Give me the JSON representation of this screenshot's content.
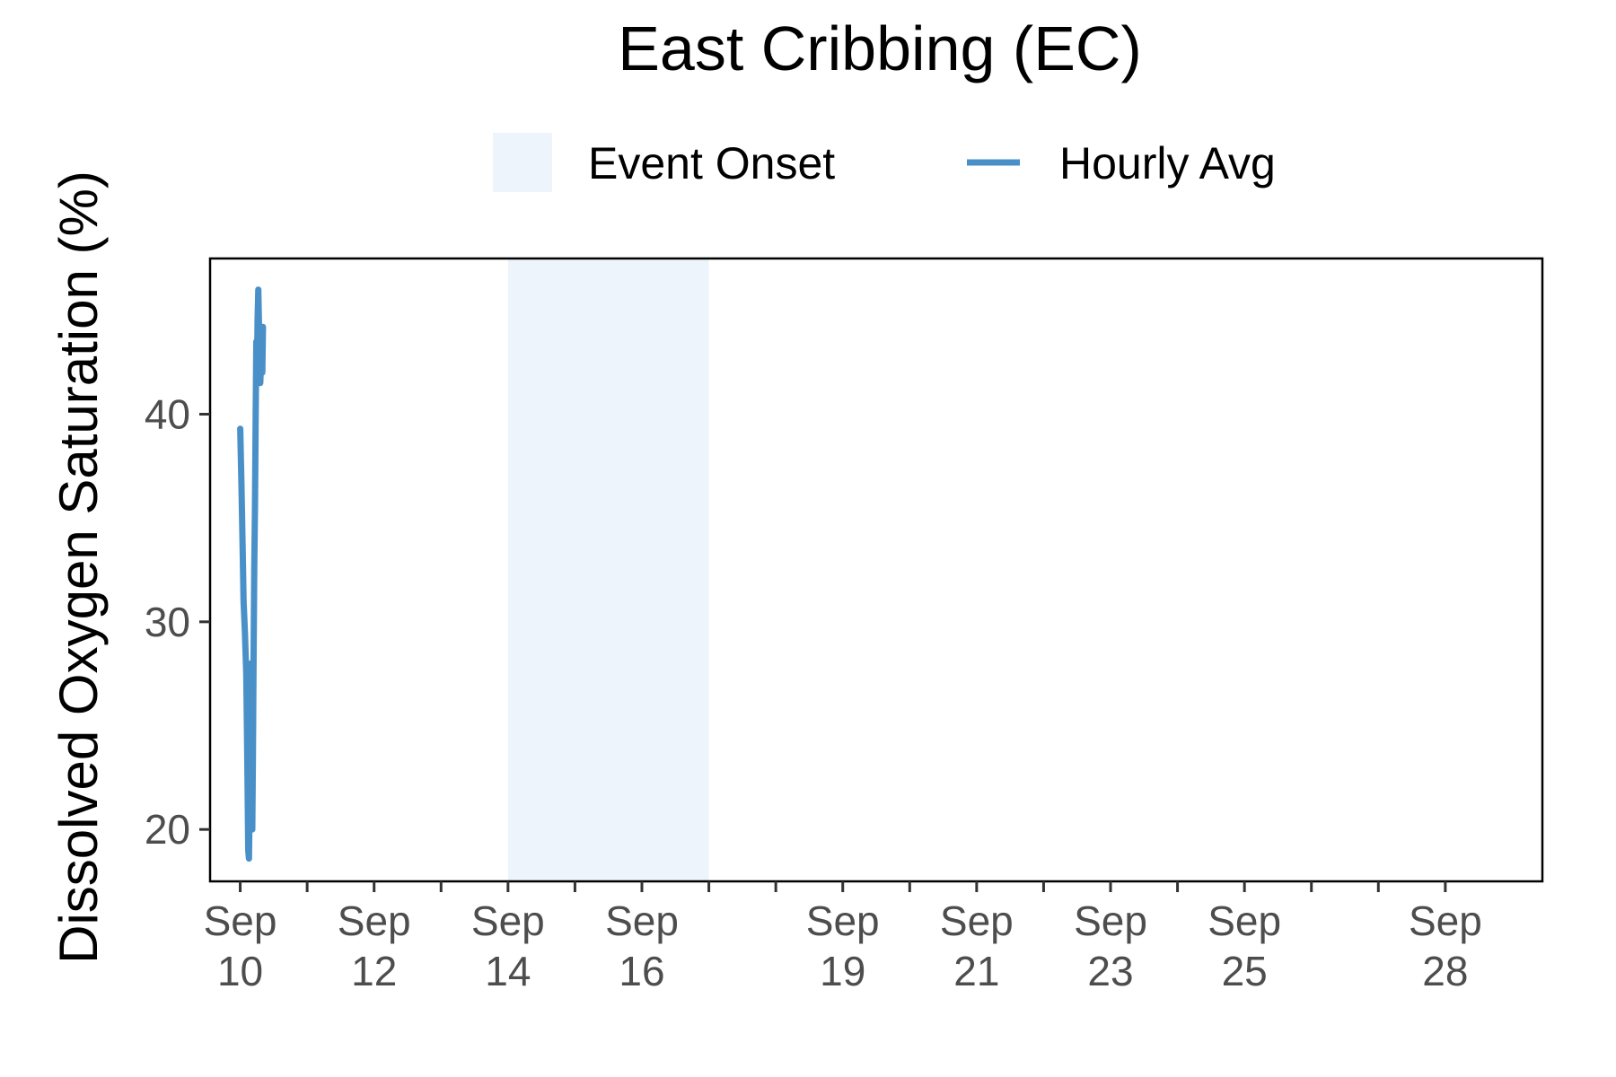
{
  "chart_data": {
    "type": "line",
    "title": "East Cribbing (EC)",
    "xlabel": "",
    "ylabel": "Dissolved Oxygen Saturation (%)",
    "x_range_days": [
      9.55,
      29.45
    ],
    "ylim": [
      17.5,
      47.5
    ],
    "y_ticks": [
      20,
      30,
      40
    ],
    "x_ticks": [
      {
        "day": 10,
        "label": [
          "Sep",
          "10"
        ]
      },
      {
        "day": 12,
        "label": [
          "Sep",
          "12"
        ]
      },
      {
        "day": 14,
        "label": [
          "Sep",
          "14"
        ]
      },
      {
        "day": 16,
        "label": [
          "Sep",
          "16"
        ]
      },
      {
        "day": 19,
        "label": [
          "Sep",
          "19"
        ]
      },
      {
        "day": 21,
        "label": [
          "Sep",
          "21"
        ]
      },
      {
        "day": 23,
        "label": [
          "Sep",
          "23"
        ]
      },
      {
        "day": 25,
        "label": [
          "Sep",
          "25"
        ]
      },
      {
        "day": 28,
        "label": [
          "Sep",
          "28"
        ]
      }
    ],
    "minor_ticks": [
      11,
      13,
      15,
      17,
      18,
      20,
      22,
      24,
      26,
      27
    ],
    "legend": {
      "position": "top",
      "entries": [
        {
          "label": "Event Onset",
          "kind": "fill",
          "color": "#edf4fb"
        },
        {
          "label": "Hourly Avg",
          "kind": "line",
          "color": "#4a90c8"
        }
      ]
    },
    "event_onset": {
      "start_day": 14.0,
      "end_day": 17.0,
      "color": "#edf4fb"
    },
    "series": [
      {
        "name": "Hourly Avg",
        "color": "#4a90c8",
        "points": [
          [
            10.0,
            39.3
          ],
          [
            10.02,
            36.5
          ],
          [
            10.04,
            33.0
          ],
          [
            10.05,
            31.0
          ],
          [
            10.07,
            29.5
          ],
          [
            10.09,
            27.5
          ],
          [
            10.1,
            25.0
          ],
          [
            10.11,
            22.0
          ],
          [
            10.12,
            19.0
          ],
          [
            10.13,
            18.6
          ],
          [
            10.14,
            21.0
          ],
          [
            10.15,
            25.5
          ],
          [
            10.16,
            28.0
          ],
          [
            10.17,
            24.0
          ],
          [
            10.18,
            20.0
          ],
          [
            10.19,
            23.5
          ],
          [
            10.2,
            28.5
          ],
          [
            10.21,
            32.5
          ],
          [
            10.22,
            35.5
          ],
          [
            10.23,
            39.5
          ],
          [
            10.24,
            43.5
          ],
          [
            10.25,
            41.5
          ],
          [
            10.26,
            44.5
          ],
          [
            10.27,
            46.0
          ],
          [
            10.28,
            44.5
          ],
          [
            10.29,
            42.5
          ],
          [
            10.3,
            41.5
          ],
          [
            10.31,
            42.5
          ],
          [
            10.32,
            44.0
          ],
          [
            10.33,
            42.0
          ],
          [
            10.34,
            44.2
          ]
        ]
      }
    ]
  }
}
